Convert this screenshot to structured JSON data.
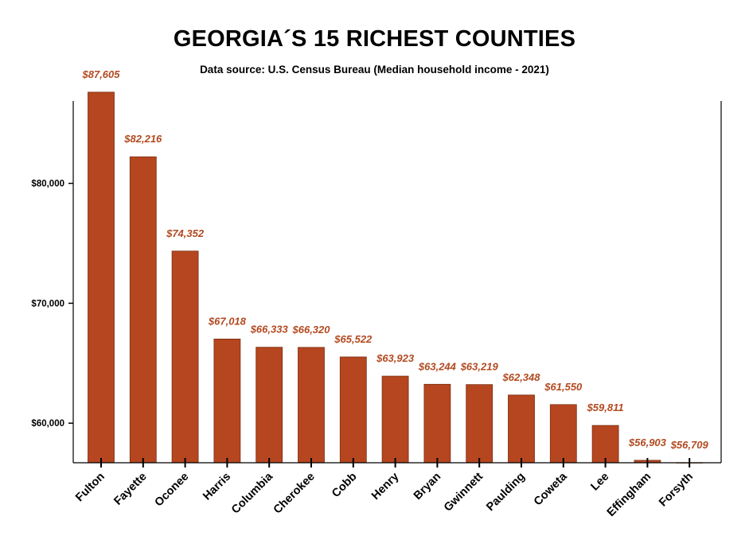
{
  "chart_data": {
    "type": "bar",
    "title": "GEORGIA´S 15 RICHEST COUNTIES",
    "subtitle": "Data source: U.S. Census Bureau (Median household income - 2021)",
    "xlabel": "",
    "ylabel": "",
    "categories": [
      "Fulton",
      "Fayette",
      "Oconee",
      "Harris",
      "Columbia",
      "Cherokee",
      "Cobb",
      "Henry",
      "Bryan",
      "Gwinnett",
      "Paulding",
      "Coweta",
      "Lee",
      "Effingham",
      "Forsyth"
    ],
    "values": [
      87605,
      82216,
      74352,
      67018,
      66333,
      66320,
      65522,
      63923,
      63244,
      63219,
      62348,
      61550,
      59811,
      56903,
      56709
    ],
    "data_labels": [
      "$87,605",
      "$82,216",
      "$74,352",
      "$67,018",
      "$66,333",
      "$66,320",
      "$65,522",
      "$63,923",
      "$63,244",
      "$63,219",
      "$62,348",
      "$61,550",
      "$59,811",
      "$56,903",
      "$56,709"
    ],
    "yticks": [
      60000,
      70000,
      80000
    ],
    "ytick_labels": [
      "$60,000",
      "$70,000",
      "$80,000"
    ],
    "ylim": [
      56700,
      86870
    ],
    "grid": false,
    "legend": "none",
    "colors": {
      "bar": "#b5461f",
      "bar_edge": "#7a2e14",
      "data_label": "#b24a20",
      "axis": "#000000"
    }
  }
}
